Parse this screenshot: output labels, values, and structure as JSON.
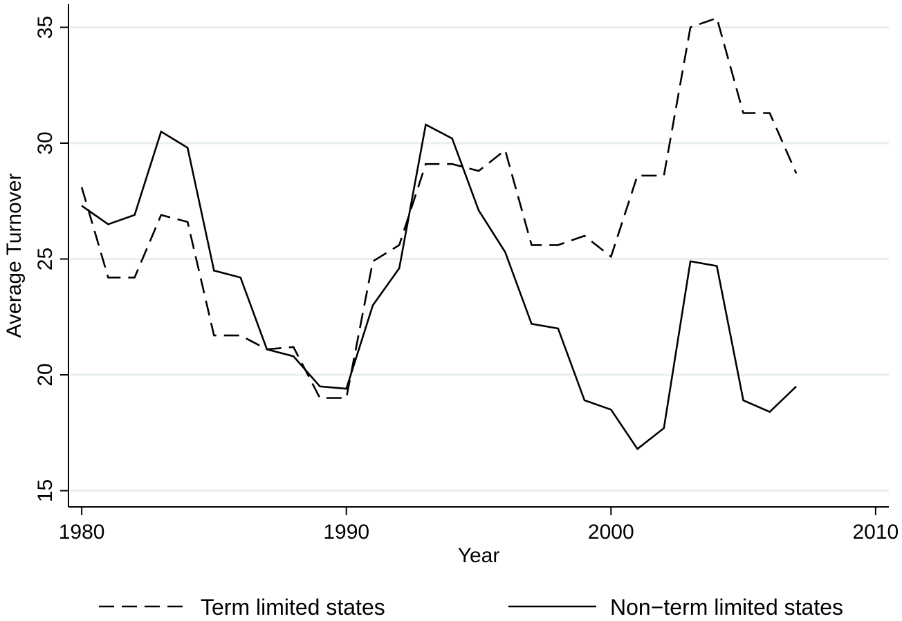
{
  "chart_data": {
    "type": "line",
    "title": "",
    "xlabel": "Year",
    "ylabel": "Average Turnover",
    "xlim": [
      1979.5,
      2010.5
    ],
    "ylim": [
      14.3,
      36
    ],
    "xticks": [
      1980,
      1990,
      2000,
      2010
    ],
    "yticks": [
      15,
      20,
      25,
      30,
      35
    ],
    "grid": "horizontal",
    "legend_position": "bottom",
    "x": [
      1980,
      1981,
      1982,
      1983,
      1984,
      1985,
      1986,
      1987,
      1988,
      1989,
      1990,
      1991,
      1992,
      1993,
      1994,
      1995,
      1996,
      1997,
      1998,
      1999,
      2000,
      2001,
      2002,
      2003,
      2004,
      2005,
      2006,
      2007
    ],
    "series": [
      {
        "name": "Term limited states",
        "style": "dashed",
        "color": "#000000",
        "values": [
          28.1,
          24.2,
          24.2,
          26.9,
          26.6,
          21.7,
          21.7,
          21.1,
          21.2,
          19.0,
          19.0,
          24.9,
          25.6,
          29.1,
          29.1,
          28.8,
          29.7,
          25.6,
          25.6,
          26.0,
          25.1,
          28.6,
          28.6,
          35.0,
          35.4,
          31.3,
          31.3,
          28.7
        ]
      },
      {
        "name": "Non−term limited states",
        "style": "solid",
        "color": "#000000",
        "values": [
          27.3,
          26.5,
          26.9,
          30.5,
          29.8,
          24.5,
          24.2,
          21.1,
          20.8,
          19.5,
          19.4,
          23.0,
          24.6,
          30.8,
          30.2,
          27.1,
          25.3,
          22.2,
          22.0,
          18.9,
          18.5,
          16.8,
          17.7,
          24.9,
          24.7,
          18.9,
          18.4,
          19.5
        ]
      }
    ]
  }
}
